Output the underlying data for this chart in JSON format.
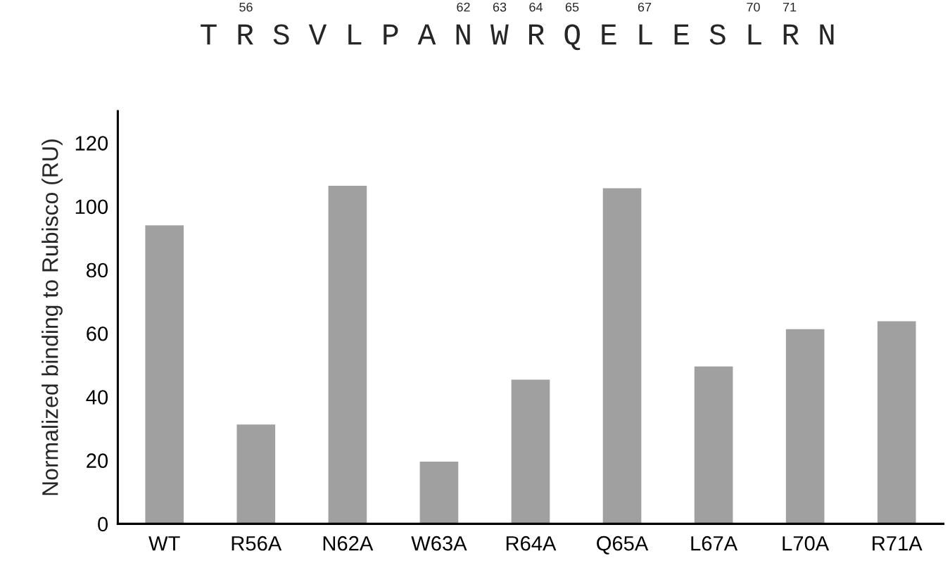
{
  "chart_data": {
    "type": "bar",
    "ylabel": "Normalized binding to Rubisco (RU)",
    "categories": [
      "WT",
      "R56A",
      "N62A",
      "W63A",
      "R64A",
      "Q65A",
      "L67A",
      "L70A",
      "R71A"
    ],
    "values": [
      94,
      31.3,
      106.5,
      19.6,
      45.4,
      105.7,
      49.6,
      61.3,
      63.8
    ],
    "color": "#a0a0a0",
    "ylim": [
      0,
      130
    ],
    "yticks": [
      0,
      20,
      40,
      60,
      80,
      100,
      120
    ],
    "grid": false,
    "annotations": [
      "T R S V L P A N W R Q E L E S L R N",
      "56",
      "62",
      "63",
      "64",
      "65",
      "67",
      "70",
      "71"
    ]
  }
}
